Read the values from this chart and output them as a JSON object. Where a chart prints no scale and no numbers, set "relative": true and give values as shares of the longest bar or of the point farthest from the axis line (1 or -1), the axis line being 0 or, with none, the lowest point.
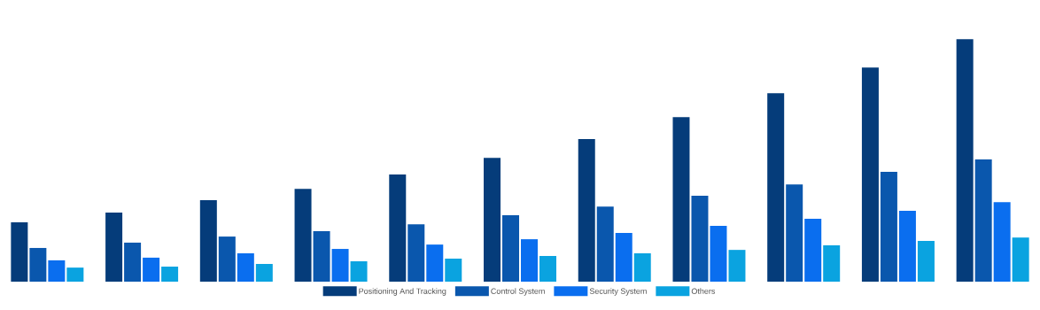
{
  "chart_data": {
    "type": "bar",
    "relative": true,
    "legend": "bottom",
    "categories": [
      null,
      null,
      null,
      null,
      null,
      null,
      null,
      null,
      null,
      null,
      null
    ],
    "series": [
      {
        "name": "Positioning And Tracking",
        "color": "#053c7a",
        "values": [
          0.245,
          0.285,
          0.336,
          0.383,
          0.442,
          0.511,
          0.588,
          0.679,
          0.777,
          0.883,
          1
        ]
      },
      {
        "name": "Control System",
        "color": "#0a57ad",
        "values": [
          0.139,
          0.161,
          0.186,
          0.208,
          0.237,
          0.274,
          0.31,
          0.354,
          0.401,
          0.453,
          0.504
        ]
      },
      {
        "name": "Security System",
        "color": "#0a6eef",
        "values": [
          0.088,
          0.099,
          0.117,
          0.135,
          0.153,
          0.175,
          0.201,
          0.23,
          0.259,
          0.292,
          0.328
        ]
      },
      {
        "name": "Others",
        "color": "#0aa3e0",
        "values": [
          0.058,
          0.062,
          0.073,
          0.084,
          0.095,
          0.106,
          0.117,
          0.131,
          0.15,
          0.168,
          0.182
        ]
      }
    ]
  }
}
